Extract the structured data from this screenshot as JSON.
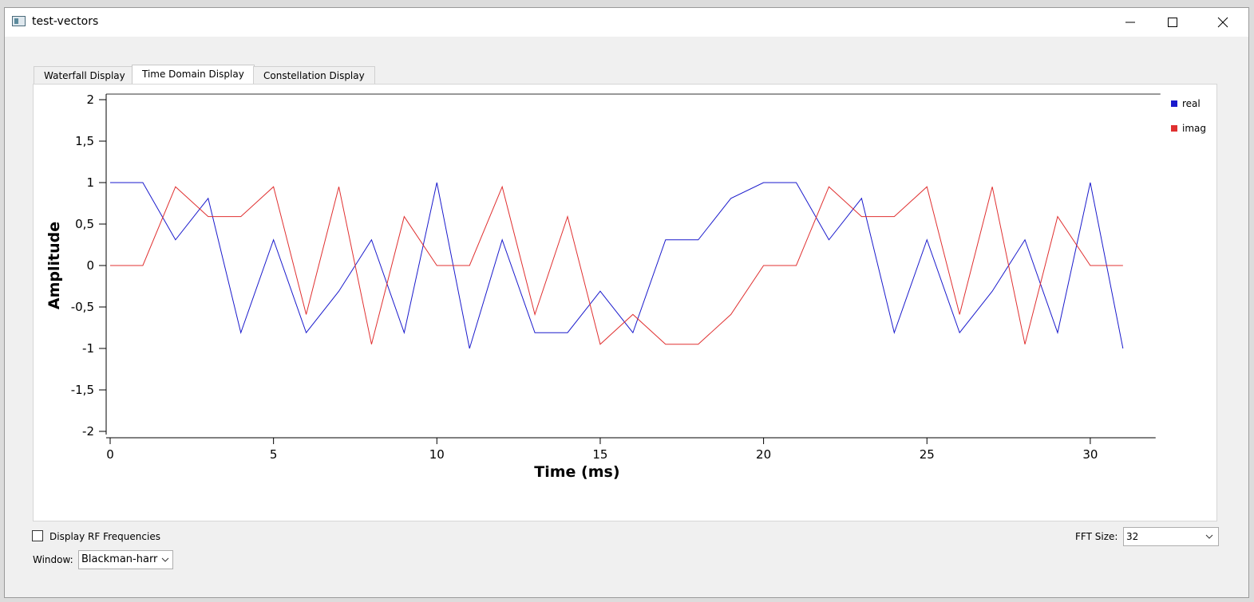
{
  "window": {
    "title": "test-vectors"
  },
  "tabs": [
    "Waterfall Display",
    "Time Domain Display",
    "Constellation Display"
  ],
  "chart_data": {
    "type": "line",
    "xlabel": "Time (ms)",
    "ylabel": "Amplitude",
    "x": [
      0,
      1,
      2,
      3,
      4,
      5,
      6,
      7,
      8,
      9,
      10,
      11,
      12,
      13,
      14,
      15,
      16,
      17,
      18,
      19,
      20,
      21,
      22,
      23,
      24,
      25,
      26,
      27,
      28,
      29,
      30,
      31
    ],
    "series": [
      {
        "name": "real",
        "color": "#1a1acc",
        "values": [
          1,
          1,
          0.31,
          0.81,
          -0.81,
          0.31,
          -0.81,
          -0.31,
          0.31,
          -0.81,
          1,
          -1,
          0.31,
          -0.81,
          -0.81,
          -0.31,
          -0.81,
          0.31,
          0.31,
          0.81,
          1,
          1,
          0.31,
          0.81,
          -0.81,
          0.31,
          -0.81,
          -0.31,
          0.31,
          -0.81,
          1,
          -1
        ]
      },
      {
        "name": "imag",
        "color": "#e03030",
        "values": [
          0,
          0,
          0.95,
          0.59,
          0.59,
          0.95,
          -0.59,
          0.95,
          -0.95,
          0.59,
          0,
          0,
          0.95,
          -0.59,
          0.59,
          -0.95,
          -0.59,
          -0.95,
          -0.95,
          -0.59,
          0,
          0,
          0.95,
          0.59,
          0.59,
          0.95,
          -0.59,
          0.95,
          -0.95,
          0.59,
          0,
          0
        ]
      }
    ],
    "xlim": [
      0,
      32
    ],
    "ylim": [
      -2,
      2
    ],
    "xticks": [
      0,
      5,
      10,
      15,
      20,
      25,
      30
    ],
    "yticks": [
      2,
      {
        "value": 1.5,
        "label": "1,5"
      },
      1,
      {
        "value": 0.5,
        "label": "0,5"
      },
      0,
      {
        "value": -0.5,
        "label": "-0,5"
      },
      -1,
      {
        "value": -1.5,
        "label": "-1,5"
      },
      -2
    ],
    "legend": "upper right",
    "grid": false
  },
  "controls": {
    "rf_checkbox": "Display RF Frequencies",
    "window_label": "Window:",
    "window_value": "Blackman-harr",
    "fft_label": "FFT Size:",
    "fft_value": "32"
  }
}
